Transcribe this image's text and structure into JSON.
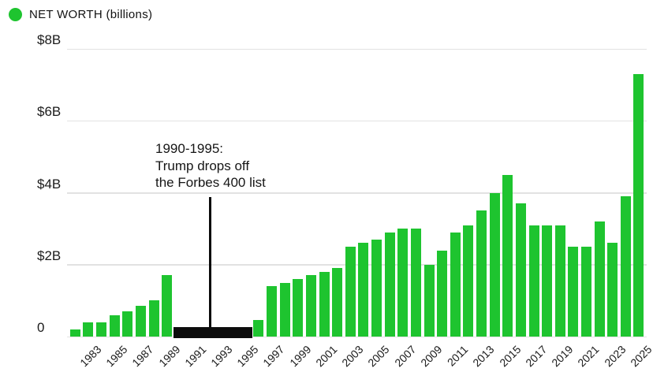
{
  "legend": {
    "label": "NET WORTH (billions)"
  },
  "colors": {
    "bar": "#1ec42f",
    "off_list_marker": "#0c0c0c",
    "gridline": "#e2e2e2",
    "text": "#1b1b1b"
  },
  "annotation": {
    "line1": "1990-1995:",
    "line2": "Trump drops off",
    "line3": "the Forbes 400 list"
  },
  "chart_data": {
    "type": "bar",
    "title": "NET WORTH (billions)",
    "xlabel": "",
    "ylabel": "",
    "ylim": [
      0,
      8
    ],
    "grid": true,
    "legend_position": "top-left",
    "series_name": "NET WORTH (billions)",
    "categories": [
      1982,
      1983,
      1984,
      1985,
      1986,
      1987,
      1988,
      1989,
      1990,
      1991,
      1992,
      1993,
      1994,
      1995,
      1996,
      1997,
      1998,
      1999,
      2000,
      2001,
      2002,
      2003,
      2004,
      2005,
      2006,
      2007,
      2008,
      2009,
      2010,
      2011,
      2012,
      2013,
      2014,
      2015,
      2016,
      2017,
      2018,
      2019,
      2020,
      2021,
      2022,
      2023,
      2024,
      2025
    ],
    "values": [
      0.2,
      0.4,
      0.4,
      0.6,
      0.7,
      0.85,
      1.0,
      1.7,
      null,
      null,
      null,
      null,
      null,
      null,
      0.45,
      1.4,
      1.5,
      1.6,
      1.7,
      1.8,
      1.9,
      2.5,
      2.6,
      2.7,
      2.9,
      3.0,
      3.0,
      2.0,
      2.4,
      2.9,
      3.1,
      3.5,
      4.0,
      4.5,
      3.7,
      3.1,
      3.1,
      3.1,
      2.5,
      2.5,
      3.2,
      2.6,
      3.9,
      7.3
    ],
    "off_list_years": [
      1990,
      1991,
      1992,
      1993,
      1994,
      1995
    ],
    "off_list_note": "1990-1995: Trump drops off the Forbes 400 list",
    "y_axis": {
      "ticks": [
        {
          "value": 0,
          "label": "0"
        },
        {
          "value": 2,
          "label": "$2B"
        },
        {
          "value": 4,
          "label": "$4B"
        },
        {
          "value": 6,
          "label": "$6B"
        },
        {
          "value": 8,
          "label": "$8B"
        }
      ]
    },
    "x_tick_labels": [
      "1983",
      "1985",
      "1987",
      "1989",
      "1991",
      "1993",
      "1995",
      "1997",
      "1999",
      "2001",
      "2003",
      "2005",
      "2007",
      "2009",
      "2011",
      "2013",
      "2015",
      "2017",
      "2019",
      "2021",
      "2023",
      "2025"
    ]
  }
}
